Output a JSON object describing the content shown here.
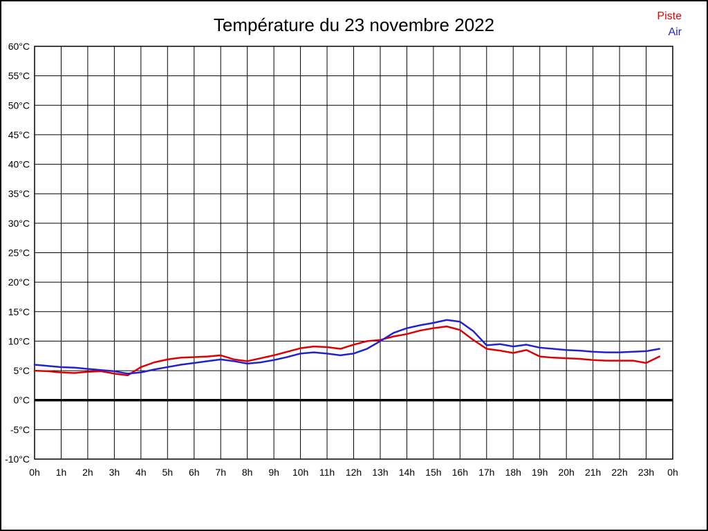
{
  "title": "Température du 23 novembre 2022",
  "legend": [
    {
      "label": "Piste",
      "color": "#dd0000"
    },
    {
      "label": "Air",
      "color": "#2222cc"
    }
  ],
  "chart_data": {
    "type": "line",
    "title": "Température du 23 novembre 2022",
    "xlabel": "",
    "ylabel": "",
    "xlim_hours": [
      0,
      24
    ],
    "ylim": [
      -10,
      60
    ],
    "grid": true,
    "legend_position": "top-right",
    "zero_line": true,
    "zero_line_color": "#000000",
    "xtick_values": [
      0,
      1,
      2,
      3,
      4,
      5,
      6,
      7,
      8,
      9,
      10,
      11,
      12,
      13,
      14,
      15,
      16,
      17,
      18,
      19,
      20,
      21,
      22,
      23,
      24
    ],
    "xtick_labels": [
      "0h",
      "1h",
      "2h",
      "3h",
      "4h",
      "5h",
      "6h",
      "7h",
      "8h",
      "9h",
      "10h",
      "11h",
      "12h",
      "13h",
      "14h",
      "15h",
      "16h",
      "17h",
      "18h",
      "19h",
      "20h",
      "21h",
      "22h",
      "23h",
      "0h"
    ],
    "ytick_values": [
      60,
      55,
      50,
      45,
      40,
      35,
      30,
      25,
      20,
      15,
      10,
      5,
      0,
      -5,
      -10
    ],
    "ytick_labels": [
      "60°C",
      "55°C",
      "50°C",
      "45°C",
      "40°C",
      "35°C",
      "30°C",
      "25°C",
      "20°C",
      "15°C",
      "10°C",
      "5°C",
      "0°C",
      "-5°C",
      "-10°C"
    ],
    "x_hours": [
      0,
      0.5,
      1,
      1.5,
      2,
      2.5,
      3,
      3.5,
      4,
      4.5,
      5,
      5.5,
      6,
      6.5,
      7,
      7.5,
      8,
      8.5,
      9,
      9.5,
      10,
      10.5,
      11,
      11.5,
      12,
      12.5,
      13,
      13.5,
      14,
      14.5,
      15,
      15.5,
      16,
      16.5,
      17,
      17.5,
      18,
      18.5,
      19,
      19.5,
      20,
      20.5,
      21,
      21.5,
      22,
      22.5,
      23,
      23.5
    ],
    "series": [
      {
        "name": "Piste",
        "color": "#dd0000",
        "values": [
          5.0,
          4.9,
          4.7,
          4.6,
          4.8,
          4.9,
          4.5,
          4.2,
          5.6,
          6.4,
          6.9,
          7.2,
          7.3,
          7.4,
          7.6,
          6.9,
          6.6,
          7.1,
          7.6,
          8.2,
          8.8,
          9.1,
          9.0,
          8.7,
          9.4,
          10.0,
          10.2,
          10.8,
          11.2,
          11.8,
          12.2,
          12.5,
          11.9,
          10.2,
          8.7,
          8.4,
          8.0,
          8.5,
          7.4,
          7.2,
          7.1,
          7.0,
          6.8,
          6.7,
          6.7,
          6.7,
          6.3,
          7.4
        ]
      },
      {
        "name": "Air",
        "color": "#2222cc",
        "values": [
          6.0,
          5.8,
          5.6,
          5.5,
          5.3,
          5.1,
          4.9,
          4.5,
          4.7,
          5.2,
          5.6,
          6.0,
          6.3,
          6.6,
          6.9,
          6.6,
          6.2,
          6.4,
          6.8,
          7.3,
          7.9,
          8.1,
          7.9,
          7.6,
          7.9,
          8.7,
          10.0,
          11.4,
          12.2,
          12.7,
          13.1,
          13.6,
          13.3,
          11.7,
          9.3,
          9.5,
          9.1,
          9.4,
          8.9,
          8.7,
          8.5,
          8.4,
          8.2,
          8.1,
          8.1,
          8.2,
          8.3,
          8.7
        ]
      }
    ]
  }
}
